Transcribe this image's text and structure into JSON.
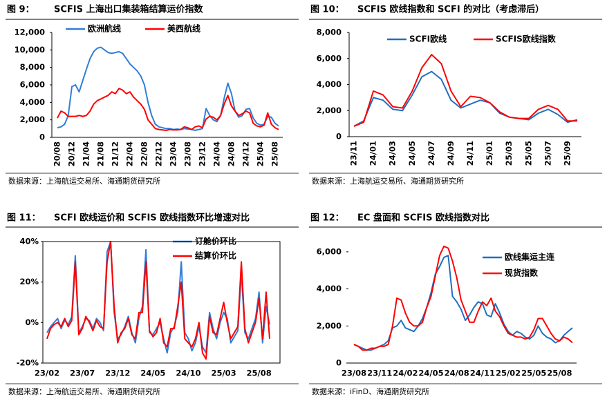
{
  "chart_data": [
    {
      "type": "line",
      "figure_label": "图 9：",
      "title": "SCFIS 上海出口集装箱结算运价指数",
      "source": "数据来源：上海航运交易所、海通期货研究所",
      "legend": "top-left",
      "x": [
        "20/08",
        null,
        null,
        null,
        "20/12",
        null,
        null,
        null,
        "21/04",
        null,
        null,
        null,
        "21/08",
        null,
        null,
        null,
        "21/12",
        null,
        null,
        null,
        "22/04",
        null,
        null,
        null,
        "22/08",
        null,
        null,
        null,
        "22/12",
        null,
        null,
        null,
        "23/04",
        null,
        null,
        null,
        "23/08",
        null,
        null,
        null,
        "23/12",
        null,
        null,
        null,
        "24/04",
        null,
        null,
        null,
        "24/08",
        null,
        null,
        null,
        "24/12",
        null,
        null,
        null,
        "25/04",
        null,
        null,
        null,
        "25/08",
        null
      ],
      "ylim": [
        0,
        12000
      ],
      "yticks": [
        0,
        {
          "value": 2000,
          "label": "2,000"
        },
        {
          "value": 4000,
          "label": "4,000"
        },
        {
          "value": 6000,
          "label": "6,000"
        },
        {
          "value": 8000,
          "label": "8,000"
        },
        {
          "value": 10000,
          "label": "10,000"
        },
        {
          "value": 12000,
          "label": "12,000"
        }
      ],
      "series": [
        {
          "name": "欧洲航线",
          "color": "#2f7ed8",
          "values": [
            1100,
            1200,
            1500,
            2500,
            5800,
            6000,
            5200,
            6500,
            7800,
            9000,
            9800,
            10200,
            10300,
            10000,
            9700,
            9600,
            9700,
            9800,
            9600,
            9000,
            8400,
            8000,
            7600,
            7000,
            6000,
            4000,
            2500,
            1500,
            1200,
            1100,
            1000,
            1000,
            900,
            950,
            900,
            1000,
            950,
            900,
            800,
            900,
            1000,
            3300,
            2500,
            2000,
            1800,
            2500,
            4500,
            6200,
            5000,
            3000,
            2300,
            2500,
            3200,
            3300,
            2200,
            1600,
            1400,
            1500,
            2400,
            2300,
            1600,
            1300
          ]
        },
        {
          "name": "美西航线",
          "color": "#ff0000",
          "values": [
            2200,
            3000,
            2800,
            2400,
            2400,
            2400,
            2500,
            2400,
            2500,
            3000,
            3800,
            4200,
            4400,
            4600,
            4800,
            5200,
            5000,
            5600,
            5400,
            5000,
            5200,
            4600,
            4200,
            3800,
            3200,
            2000,
            1500,
            1000,
            900,
            850,
            800,
            900,
            850,
            850,
            900,
            1200,
            1100,
            900,
            1200,
            1300,
            1100,
            2100,
            2400,
            2300,
            2000,
            2500,
            3800,
            4800,
            3600,
            3000,
            2500,
            2700,
            3000,
            2800,
            1600,
            1300,
            1200,
            1400,
            2800,
            1500,
            1100,
            900
          ]
        }
      ]
    },
    {
      "type": "line",
      "figure_label": "图 10：",
      "title": "SCFIS 欧线指数和 SCFI 的对比（考虑滞后）",
      "source": "数据来源：上海航运交易所、海通期货研究所",
      "legend": "top",
      "x": [
        "23/11",
        null,
        "24/01",
        null,
        "24/03",
        null,
        "24/05",
        null,
        "24/07",
        null,
        "24/09",
        null,
        "24/11",
        null,
        "25/01",
        null,
        "25/03",
        null,
        "25/05",
        null,
        "25/07",
        null,
        "25/09",
        null
      ],
      "ylim": [
        0,
        8000
      ],
      "yticks": [
        0,
        {
          "value": 2000,
          "label": "2,000"
        },
        {
          "value": 4000,
          "label": "4,000"
        },
        {
          "value": 6000,
          "label": "6,000"
        },
        {
          "value": 8000,
          "label": "8,000"
        }
      ],
      "series": [
        {
          "name": "SCFI欧线",
          "color": "#1f6fc0",
          "values": [
            800,
            1200,
            3000,
            2800,
            2100,
            2000,
            3200,
            4600,
            5000,
            4400,
            2800,
            2200,
            2500,
            2800,
            2600,
            1800,
            1500,
            1400,
            1300,
            1800,
            2100,
            1700,
            1100,
            1300
          ]
        },
        {
          "name": "SCFIS欧线指数",
          "color": "#ff0000",
          "values": [
            800,
            1100,
            3500,
            3200,
            2300,
            2200,
            3500,
            5300,
            6300,
            5600,
            3500,
            2300,
            3100,
            3000,
            2600,
            1900,
            1500,
            1400,
            1400,
            2100,
            2400,
            2100,
            1200,
            1200
          ]
        }
      ]
    },
    {
      "type": "line",
      "figure_label": "图 11：",
      "title": "SCFI 欧线运价和 SCFIS 欧线指数环比增速对比",
      "source": "数据来源：上海航运交易所、海通期货研究所",
      "legend": "top-right",
      "x": [
        "23/02",
        null,
        null,
        null,
        null,
        null,
        null,
        null,
        null,
        null,
        "23/07",
        null,
        null,
        null,
        null,
        null,
        null,
        null,
        null,
        null,
        "23/12",
        null,
        null,
        null,
        null,
        null,
        null,
        null,
        null,
        null,
        "24/05",
        null,
        null,
        null,
        null,
        null,
        null,
        null,
        null,
        null,
        "24/10",
        null,
        null,
        null,
        null,
        null,
        null,
        null,
        null,
        null,
        "25/03",
        null,
        null,
        null,
        null,
        null,
        null,
        null,
        null,
        null,
        "25/08",
        null,
        null,
        null
      ],
      "ylim": [
        -20,
        40
      ],
      "yticks": [
        {
          "value": -20,
          "label": "-20%"
        },
        {
          "value": 0,
          "label": "0%"
        },
        {
          "value": 20,
          "label": "20%"
        },
        {
          "value": 40,
          "label": "40%"
        }
      ],
      "series": [
        {
          "name": "订舱价环比",
          "color": "#2f7ed8",
          "values": [
            -5,
            -2,
            0,
            2,
            -3,
            1,
            -1,
            3,
            33,
            -5,
            -2,
            2,
            1,
            -3,
            2,
            0,
            -4,
            35,
            40,
            5,
            -8,
            -6,
            -2,
            3,
            -5,
            -10,
            2,
            8,
            36,
            -5,
            -6,
            -3,
            0,
            -8,
            -15,
            -5,
            -2,
            5,
            30,
            -5,
            -8,
            -14,
            -10,
            -2,
            -12,
            -15,
            5,
            -3,
            -8,
            0,
            5,
            2,
            -10,
            -7,
            -4,
            25,
            -5,
            -8,
            -3,
            2,
            15,
            -10,
            8,
            -1
          ]
        },
        {
          "name": "结算价环比",
          "color": "#ff0000",
          "values": [
            -8,
            -3,
            -1,
            0,
            -2,
            2,
            -2,
            1,
            30,
            -6,
            -3,
            3,
            0,
            -4,
            1,
            -2,
            -3,
            30,
            40,
            8,
            -10,
            -5,
            -3,
            2,
            -6,
            -8,
            5,
            5,
            30,
            -4,
            -7,
            -5,
            2,
            -10,
            -12,
            -3,
            -3,
            8,
            20,
            -8,
            -10,
            -12,
            -8,
            0,
            -15,
            -18,
            3,
            -5,
            -6,
            2,
            10,
            0,
            -8,
            -5,
            -2,
            30,
            -3,
            -10,
            -5,
            0,
            12,
            -8,
            15,
            -8
          ]
        }
      ]
    },
    {
      "type": "line",
      "figure_label": "图 12：",
      "title": "EC 盘面和 SCFIS 欧线指数对比",
      "source": "数据来源：iFinD、海通期货研究所",
      "legend": "right",
      "x": [
        "23/08",
        null,
        null,
        null,
        null,
        null,
        "23/11",
        null,
        null,
        null,
        null,
        null,
        "24/02",
        null,
        null,
        null,
        null,
        null,
        "24/05",
        null,
        null,
        null,
        null,
        null,
        "24/08",
        null,
        null,
        null,
        null,
        null,
        "24/11",
        null,
        null,
        null,
        null,
        null,
        "25/02",
        null,
        null,
        null,
        null,
        null,
        "25/05",
        null,
        null,
        null,
        null,
        null,
        "25/08",
        null,
        null,
        null
      ],
      "ylim": [
        0,
        7000
      ],
      "yticks": [
        0,
        {
          "value": 2000,
          "label": "2,000"
        },
        {
          "value": 4000,
          "label": "4,000"
        },
        {
          "value": 6000,
          "label": "6,000"
        }
      ],
      "series": [
        {
          "name": "欧线集运主连",
          "color": "#1f6fc0",
          "values": [
            1000,
            900,
            800,
            700,
            700,
            800,
            900,
            1000,
            1200,
            1900,
            2000,
            2300,
            1900,
            1800,
            1700,
            2000,
            2400,
            3000,
            3800,
            4800,
            5200,
            5700,
            5800,
            3600,
            3300,
            2900,
            2300,
            2600,
            3000,
            3300,
            3200,
            2600,
            2500,
            3200,
            2700,
            2100,
            1700,
            1500,
            1700,
            1600,
            1400,
            1300,
            1500,
            2000,
            1600,
            1400,
            1300,
            1100,
            1200,
            1500,
            1700,
            1900
          ]
        },
        {
          "name": "现货指数",
          "color": "#ff0000",
          "values": [
            1000,
            900,
            700,
            700,
            800,
            800,
            900,
            900,
            1000,
            2000,
            3500,
            3400,
            2700,
            2200,
            2000,
            2000,
            2200,
            3000,
            3600,
            4700,
            5800,
            6300,
            6200,
            5500,
            4600,
            3400,
            2800,
            2200,
            2200,
            2800,
            3300,
            3100,
            3500,
            2800,
            2500,
            2000,
            1600,
            1500,
            1400,
            1400,
            1300,
            1400,
            1800,
            2400,
            2400,
            2000,
            1600,
            1300,
            1200,
            1400,
            1300,
            1100
          ]
        }
      ]
    }
  ]
}
